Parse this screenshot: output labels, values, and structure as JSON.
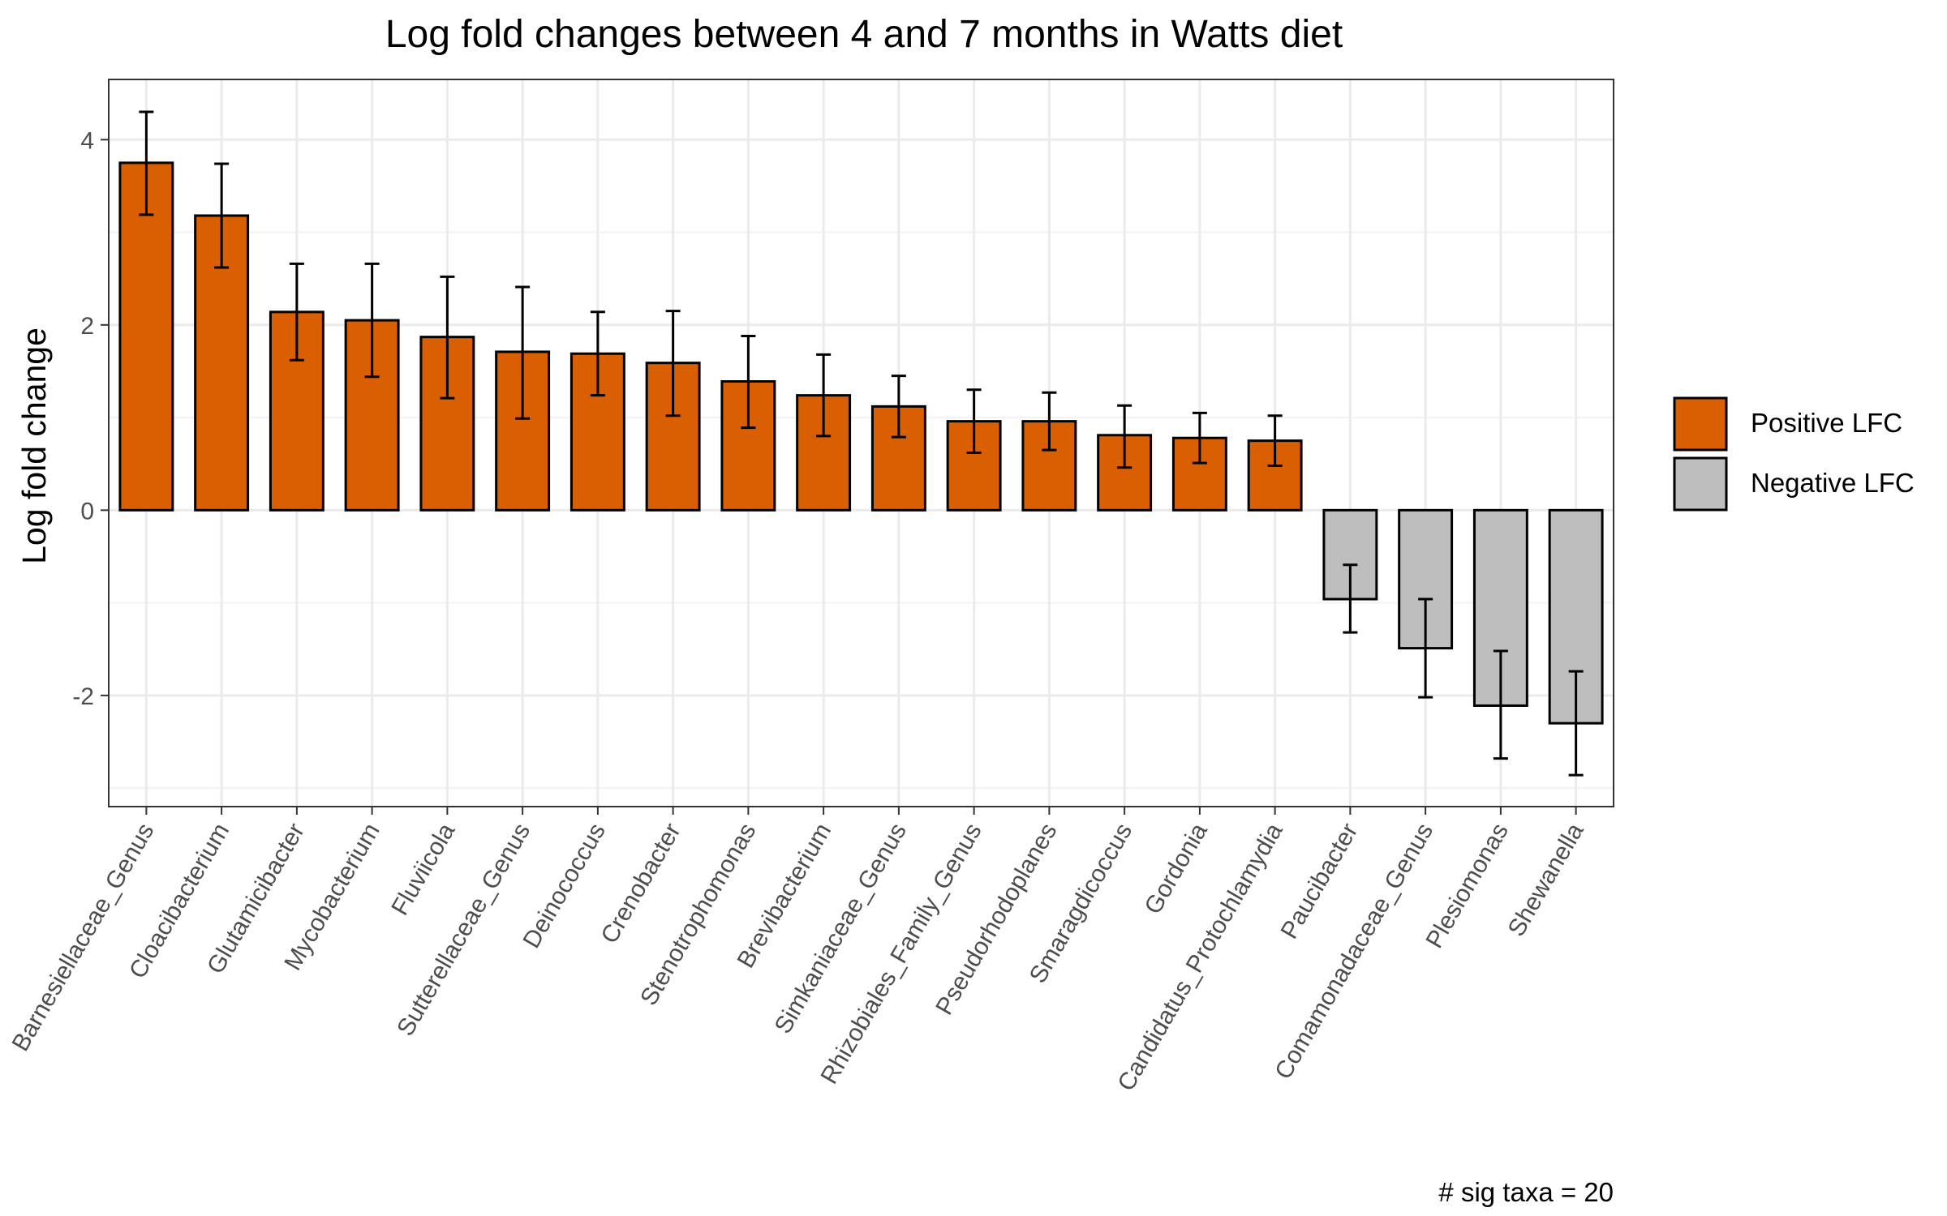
{
  "chart_data": {
    "type": "bar",
    "title": "Log fold changes between 4 and 7 months in Watts diet",
    "xlabel": "",
    "ylabel": "Log fold change",
    "ylim": [
      -3.2,
      4.65
    ],
    "yticks": [
      -2,
      0,
      2,
      4
    ],
    "grid": true,
    "legend_position": "right",
    "caption": "# sig taxa = 20",
    "categories": [
      "Barnesiellaceae_Genus",
      "Cloacibacterium",
      "Glutamicibacter",
      "Mycobacterium",
      "Fluviicola",
      "Sutterellaceae_Genus",
      "Deinococcus",
      "Crenobacter",
      "Stenotrophomonas",
      "Brevibacterium",
      "Simkaniaceae_Genus",
      "Rhizobiales_Family_Genus",
      "Pseudorhodoplanes",
      "Smaragdicoccus",
      "Gordonia",
      "Candidatus_Protochlamydia",
      "Paucibacter",
      "Comamonadaceae_Genus",
      "Plesiomonas",
      "Shewanella"
    ],
    "values": [
      3.75,
      3.18,
      2.14,
      2.05,
      1.87,
      1.71,
      1.69,
      1.59,
      1.39,
      1.24,
      1.12,
      0.96,
      0.96,
      0.81,
      0.78,
      0.75,
      -0.96,
      -1.49,
      -2.11,
      -2.3
    ],
    "error_low": [
      3.19,
      2.62,
      1.62,
      1.44,
      1.21,
      0.99,
      1.24,
      1.02,
      0.89,
      0.8,
      0.79,
      0.62,
      0.65,
      0.46,
      0.51,
      0.48,
      -1.32,
      -2.02,
      -2.68,
      -2.86
    ],
    "error_high": [
      4.3,
      3.74,
      2.66,
      2.66,
      2.52,
      2.41,
      2.14,
      2.15,
      1.88,
      1.68,
      1.45,
      1.3,
      1.27,
      1.13,
      1.05,
      1.02,
      -0.59,
      -0.96,
      -1.52,
      -1.74
    ],
    "series": [
      {
        "name": "Positive LFC",
        "color": "#D95F02"
      },
      {
        "name": "Negative LFC",
        "color": "#BEBEBE"
      }
    ]
  }
}
